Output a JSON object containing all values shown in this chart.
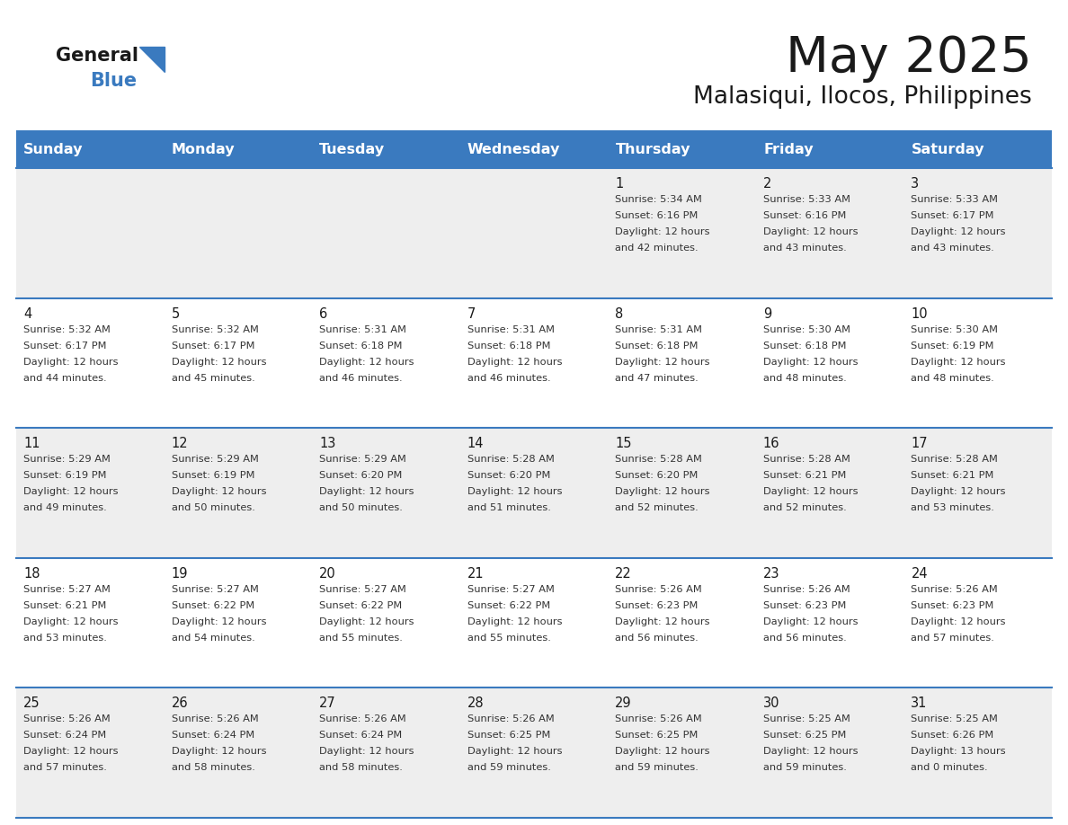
{
  "title": "May 2025",
  "subtitle": "Malasiqui, Ilocos, Philippines",
  "days_of_week": [
    "Sunday",
    "Monday",
    "Tuesday",
    "Wednesday",
    "Thursday",
    "Friday",
    "Saturday"
  ],
  "header_bg": "#3a7abf",
  "header_text": "#ffffff",
  "cell_bg_even": "#eeeeee",
  "cell_bg_odd": "#ffffff",
  "cell_text": "#333333",
  "day_number_color": "#1a1a1a",
  "grid_color": "#3a7abf",
  "title_color": "#1a1a1a",
  "subtitle_color": "#1a1a1a",
  "logo_general_color": "#1a1a1a",
  "logo_blue_color": "#3a7abf",
  "calendar_data": [
    [
      null,
      null,
      null,
      null,
      {
        "day": 1,
        "sunrise": "5:34 AM",
        "sunset": "6:16 PM",
        "daylight_line1": "Daylight: 12 hours",
        "daylight_line2": "and 42 minutes."
      },
      {
        "day": 2,
        "sunrise": "5:33 AM",
        "sunset": "6:16 PM",
        "daylight_line1": "Daylight: 12 hours",
        "daylight_line2": "and 43 minutes."
      },
      {
        "day": 3,
        "sunrise": "5:33 AM",
        "sunset": "6:17 PM",
        "daylight_line1": "Daylight: 12 hours",
        "daylight_line2": "and 43 minutes."
      }
    ],
    [
      {
        "day": 4,
        "sunrise": "5:32 AM",
        "sunset": "6:17 PM",
        "daylight_line1": "Daylight: 12 hours",
        "daylight_line2": "and 44 minutes."
      },
      {
        "day": 5,
        "sunrise": "5:32 AM",
        "sunset": "6:17 PM",
        "daylight_line1": "Daylight: 12 hours",
        "daylight_line2": "and 45 minutes."
      },
      {
        "day": 6,
        "sunrise": "5:31 AM",
        "sunset": "6:18 PM",
        "daylight_line1": "Daylight: 12 hours",
        "daylight_line2": "and 46 minutes."
      },
      {
        "day": 7,
        "sunrise": "5:31 AM",
        "sunset": "6:18 PM",
        "daylight_line1": "Daylight: 12 hours",
        "daylight_line2": "and 46 minutes."
      },
      {
        "day": 8,
        "sunrise": "5:31 AM",
        "sunset": "6:18 PM",
        "daylight_line1": "Daylight: 12 hours",
        "daylight_line2": "and 47 minutes."
      },
      {
        "day": 9,
        "sunrise": "5:30 AM",
        "sunset": "6:18 PM",
        "daylight_line1": "Daylight: 12 hours",
        "daylight_line2": "and 48 minutes."
      },
      {
        "day": 10,
        "sunrise": "5:30 AM",
        "sunset": "6:19 PM",
        "daylight_line1": "Daylight: 12 hours",
        "daylight_line2": "and 48 minutes."
      }
    ],
    [
      {
        "day": 11,
        "sunrise": "5:29 AM",
        "sunset": "6:19 PM",
        "daylight_line1": "Daylight: 12 hours",
        "daylight_line2": "and 49 minutes."
      },
      {
        "day": 12,
        "sunrise": "5:29 AM",
        "sunset": "6:19 PM",
        "daylight_line1": "Daylight: 12 hours",
        "daylight_line2": "and 50 minutes."
      },
      {
        "day": 13,
        "sunrise": "5:29 AM",
        "sunset": "6:20 PM",
        "daylight_line1": "Daylight: 12 hours",
        "daylight_line2": "and 50 minutes."
      },
      {
        "day": 14,
        "sunrise": "5:28 AM",
        "sunset": "6:20 PM",
        "daylight_line1": "Daylight: 12 hours",
        "daylight_line2": "and 51 minutes."
      },
      {
        "day": 15,
        "sunrise": "5:28 AM",
        "sunset": "6:20 PM",
        "daylight_line1": "Daylight: 12 hours",
        "daylight_line2": "and 52 minutes."
      },
      {
        "day": 16,
        "sunrise": "5:28 AM",
        "sunset": "6:21 PM",
        "daylight_line1": "Daylight: 12 hours",
        "daylight_line2": "and 52 minutes."
      },
      {
        "day": 17,
        "sunrise": "5:28 AM",
        "sunset": "6:21 PM",
        "daylight_line1": "Daylight: 12 hours",
        "daylight_line2": "and 53 minutes."
      }
    ],
    [
      {
        "day": 18,
        "sunrise": "5:27 AM",
        "sunset": "6:21 PM",
        "daylight_line1": "Daylight: 12 hours",
        "daylight_line2": "and 53 minutes."
      },
      {
        "day": 19,
        "sunrise": "5:27 AM",
        "sunset": "6:22 PM",
        "daylight_line1": "Daylight: 12 hours",
        "daylight_line2": "and 54 minutes."
      },
      {
        "day": 20,
        "sunrise": "5:27 AM",
        "sunset": "6:22 PM",
        "daylight_line1": "Daylight: 12 hours",
        "daylight_line2": "and 55 minutes."
      },
      {
        "day": 21,
        "sunrise": "5:27 AM",
        "sunset": "6:22 PM",
        "daylight_line1": "Daylight: 12 hours",
        "daylight_line2": "and 55 minutes."
      },
      {
        "day": 22,
        "sunrise": "5:26 AM",
        "sunset": "6:23 PM",
        "daylight_line1": "Daylight: 12 hours",
        "daylight_line2": "and 56 minutes."
      },
      {
        "day": 23,
        "sunrise": "5:26 AM",
        "sunset": "6:23 PM",
        "daylight_line1": "Daylight: 12 hours",
        "daylight_line2": "and 56 minutes."
      },
      {
        "day": 24,
        "sunrise": "5:26 AM",
        "sunset": "6:23 PM",
        "daylight_line1": "Daylight: 12 hours",
        "daylight_line2": "and 57 minutes."
      }
    ],
    [
      {
        "day": 25,
        "sunrise": "5:26 AM",
        "sunset": "6:24 PM",
        "daylight_line1": "Daylight: 12 hours",
        "daylight_line2": "and 57 minutes."
      },
      {
        "day": 26,
        "sunrise": "5:26 AM",
        "sunset": "6:24 PM",
        "daylight_line1": "Daylight: 12 hours",
        "daylight_line2": "and 58 minutes."
      },
      {
        "day": 27,
        "sunrise": "5:26 AM",
        "sunset": "6:24 PM",
        "daylight_line1": "Daylight: 12 hours",
        "daylight_line2": "and 58 minutes."
      },
      {
        "day": 28,
        "sunrise": "5:26 AM",
        "sunset": "6:25 PM",
        "daylight_line1": "Daylight: 12 hours",
        "daylight_line2": "and 59 minutes."
      },
      {
        "day": 29,
        "sunrise": "5:26 AM",
        "sunset": "6:25 PM",
        "daylight_line1": "Daylight: 12 hours",
        "daylight_line2": "and 59 minutes."
      },
      {
        "day": 30,
        "sunrise": "5:25 AM",
        "sunset": "6:25 PM",
        "daylight_line1": "Daylight: 12 hours",
        "daylight_line2": "and 59 minutes."
      },
      {
        "day": 31,
        "sunrise": "5:25 AM",
        "sunset": "6:26 PM",
        "daylight_line1": "Daylight: 13 hours",
        "daylight_line2": "and 0 minutes."
      }
    ]
  ]
}
